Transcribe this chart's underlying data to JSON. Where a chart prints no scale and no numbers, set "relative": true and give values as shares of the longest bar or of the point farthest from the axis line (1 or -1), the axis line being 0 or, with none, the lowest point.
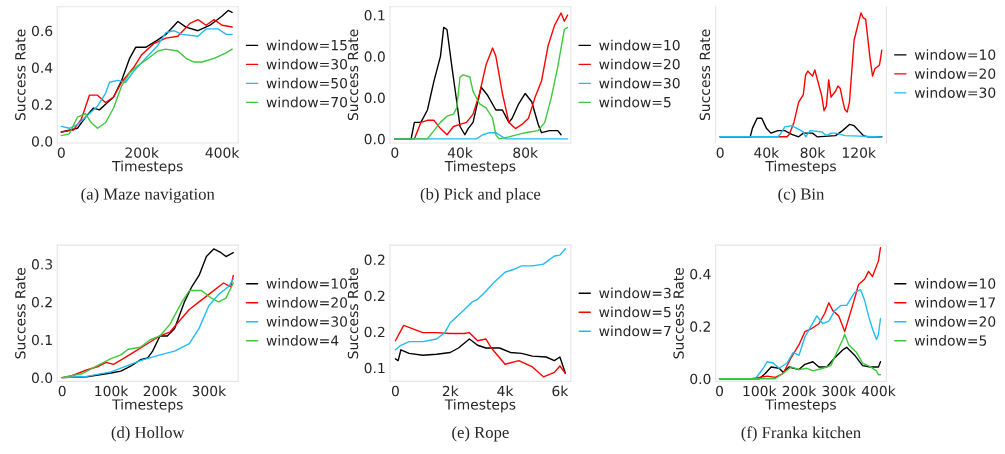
{
  "chart_data": [
    {
      "type": "line",
      "title": "(a) Maze navigation",
      "xlabel": "Timesteps",
      "ylabel": "Success Rate",
      "legend": "right",
      "xlim": [
        -10000,
        440000
      ],
      "xticks": [
        0,
        {
          "value": 200000,
          "label": "200k"
        },
        {
          "value": 400000,
          "label": "400k"
        }
      ],
      "ylim": [
        -0.01,
        0.73
      ],
      "yticks": [
        {
          "value": 0,
          "label": "0.0"
        },
        {
          "value": 0.2,
          "label": "0.2"
        },
        {
          "value": 0.4,
          "label": "0.4"
        },
        {
          "value": 0.6,
          "label": "0.6"
        }
      ],
      "series": [
        {
          "name": "window=15",
          "color": "#000000",
          "x": [
            0,
            20000,
            40000,
            60000,
            80000,
            95000,
            110000,
            130000,
            150000,
            170000,
            185000,
            210000,
            240000,
            260000,
            290000,
            310000,
            340000,
            370000,
            400000,
            415000,
            425000
          ],
          "values": [
            0.05,
            0.06,
            0.07,
            0.13,
            0.18,
            0.17,
            0.2,
            0.24,
            0.33,
            0.45,
            0.51,
            0.51,
            0.55,
            0.58,
            0.65,
            0.62,
            0.6,
            0.63,
            0.68,
            0.71,
            0.7
          ]
        },
        {
          "name": "window=30",
          "color": "#ff0000",
          "x": [
            0,
            30000,
            50000,
            70000,
            90000,
            110000,
            130000,
            150000,
            180000,
            200000,
            230000,
            260000,
            290000,
            320000,
            340000,
            360000,
            380000,
            400000,
            425000
          ],
          "values": [
            0.05,
            0.06,
            0.12,
            0.25,
            0.25,
            0.21,
            0.24,
            0.32,
            0.4,
            0.47,
            0.53,
            0.56,
            0.57,
            0.64,
            0.66,
            0.63,
            0.66,
            0.63,
            0.62
          ]
        },
        {
          "name": "window=50",
          "color": "#1ebcf5",
          "x": [
            0,
            20000,
            40000,
            60000,
            90000,
            110000,
            120000,
            140000,
            160000,
            180000,
            210000,
            240000,
            260000,
            280000,
            300000,
            340000,
            360000,
            390000,
            410000,
            425000
          ],
          "values": [
            0.08,
            0.07,
            0.09,
            0.13,
            0.19,
            0.26,
            0.32,
            0.33,
            0.32,
            0.38,
            0.45,
            0.52,
            0.59,
            0.6,
            0.58,
            0.57,
            0.61,
            0.61,
            0.58,
            0.58
          ]
        },
        {
          "name": "window=70",
          "color": "#3ec83e",
          "x": [
            0,
            20000,
            40000,
            60000,
            75000,
            90000,
            110000,
            130000,
            150000,
            170000,
            190000,
            210000,
            240000,
            260000,
            290000,
            310000,
            330000,
            350000,
            380000,
            410000,
            425000
          ],
          "values": [
            0.03,
            0.04,
            0.13,
            0.15,
            0.1,
            0.07,
            0.1,
            0.18,
            0.3,
            0.37,
            0.41,
            0.44,
            0.49,
            0.5,
            0.49,
            0.45,
            0.43,
            0.43,
            0.45,
            0.48,
            0.5
          ]
        }
      ]
    },
    {
      "type": "line",
      "title": "(b) Pick and place",
      "xlabel": "Timesteps",
      "ylabel": "Success Rate",
      "legend": "right",
      "xlim": [
        -3000,
        108000
      ],
      "xticks": [
        0,
        {
          "value": 40000,
          "label": "40k"
        },
        {
          "value": 80000,
          "label": "80k"
        }
      ],
      "ylim": [
        -0.002,
        0.064
      ],
      "yticks": [
        {
          "value": 0,
          "label": "0.0"
        },
        {
          "value": 0.02,
          "label": "0.0"
        },
        {
          "value": 0.04,
          "label": "0.0"
        },
        {
          "value": 0.06,
          "label": "0.1"
        }
      ],
      "series": [
        {
          "name": "window=10",
          "color": "#000000",
          "x": [
            0,
            8000,
            10000,
            12000,
            16000,
            20000,
            24000,
            28000,
            30000,
            32000,
            35000,
            38000,
            40000,
            43000,
            45000,
            48000,
            50000,
            53000,
            57000,
            62000,
            66000,
            70000,
            72000,
            76000,
            80000,
            84000,
            88000,
            90000,
            95000,
            100000,
            102000
          ],
          "values": [
            0,
            0,
            0.0,
            0.008,
            0.008,
            0.014,
            0.028,
            0.04,
            0.054,
            0.053,
            0.035,
            0.018,
            0.006,
            0.002,
            0.005,
            0.008,
            0.015,
            0.025,
            0.021,
            0.014,
            0.014,
            0.008,
            0.01,
            0.017,
            0.022,
            0.018,
            0.007,
            0.003,
            0.004,
            0.004,
            0.002
          ]
        },
        {
          "name": "window=20",
          "color": "#ff0000",
          "x": [
            0,
            12000,
            16000,
            20000,
            24000,
            28000,
            32000,
            36000,
            40000,
            44000,
            48000,
            52000,
            56000,
            60000,
            62000,
            66000,
            70000,
            74000,
            78000,
            82000,
            86000,
            90000,
            94000,
            98000,
            102000,
            104000,
            106000
          ],
          "values": [
            0,
            0,
            0.008,
            0.009,
            0.009,
            0.005,
            0.002,
            0.006,
            0.007,
            0.008,
            0.012,
            0.022,
            0.036,
            0.044,
            0.04,
            0.022,
            0.008,
            0.005,
            0.007,
            0.01,
            0.02,
            0.028,
            0.045,
            0.055,
            0.061,
            0.057,
            0.06
          ]
        },
        {
          "name": "window=30",
          "color": "#1ebcf5",
          "x": [
            0,
            50000,
            54000,
            58000,
            62000,
            66000,
            68000,
            106000
          ],
          "values": [
            0,
            0,
            0.002,
            0.003,
            0.003,
            0.001,
            0,
            0
          ]
        },
        {
          "name": "window=5",
          "color": "#3ec83e",
          "x": [
            0,
            20000,
            24000,
            28000,
            32000,
            36000,
            38000,
            40000,
            42000,
            46000,
            48000,
            52000,
            56000,
            60000,
            62000,
            64000,
            70000,
            80000,
            88000,
            92000,
            96000,
            100000,
            104000,
            106000
          ],
          "values": [
            0,
            0,
            0.004,
            0.008,
            0.011,
            0.012,
            0.015,
            0.03,
            0.031,
            0.03,
            0.023,
            0.017,
            0.015,
            0.01,
            0.002,
            0,
            0.001,
            0.003,
            0.004,
            0.008,
            0.02,
            0.035,
            0.053,
            0.054
          ]
        }
      ]
    },
    {
      "type": "line",
      "title": "(c) Bin",
      "xlabel": "Timesteps",
      "ylabel": "Success Rate",
      "legend": "right",
      "relative": true,
      "tick_labels": "x",
      "xlim": [
        -4000,
        144000
      ],
      "xticks": [
        0,
        {
          "value": 40000,
          "label": "40k"
        },
        {
          "value": 80000,
          "label": "80k"
        },
        {
          "value": 120000,
          "label": "120k"
        }
      ],
      "series": [
        {
          "name": "window=10",
          "color": "#000000",
          "x": [
            0,
            26000,
            28000,
            32000,
            36000,
            40000,
            44000,
            50000,
            56000,
            62000,
            68000,
            72000,
            80000,
            84000,
            100000,
            106000,
            112000,
            116000,
            120000,
            124000,
            128000,
            140000
          ],
          "values": [
            0,
            0,
            0.07,
            0.15,
            0.15,
            0.07,
            0.03,
            0.05,
            0.05,
            0.02,
            0,
            0.03,
            0.03,
            0,
            0.01,
            0.05,
            0.1,
            0.09,
            0.05,
            0.01,
            0,
            0
          ]
        },
        {
          "name": "window=20",
          "color": "#ff0000",
          "x": [
            0,
            58000,
            60000,
            64000,
            68000,
            72000,
            74000,
            76000,
            80000,
            82000,
            84000,
            88000,
            90000,
            92000,
            94000,
            96000,
            100000,
            102000,
            104000,
            106000,
            108000,
            110000,
            112000,
            116000,
            120000,
            122000,
            124000,
            126000,
            130000,
            132000,
            134000,
            138000,
            140000
          ],
          "values": [
            0,
            0,
            0.02,
            0.12,
            0.28,
            0.34,
            0.5,
            0.53,
            0.49,
            0.54,
            0.47,
            0.33,
            0.21,
            0.25,
            0.46,
            0.32,
            0.37,
            0.41,
            0.39,
            0.3,
            0.22,
            0.2,
            0.28,
            0.78,
            0.93,
            1.0,
            0.96,
            0.95,
            0.62,
            0.49,
            0.55,
            0.58,
            0.7
          ]
        },
        {
          "name": "window=30",
          "color": "#1ebcf5",
          "x": [
            0,
            50000,
            52000,
            56000,
            62000,
            72000,
            74000,
            78000,
            88000,
            92000,
            96000,
            100000,
            108000,
            140000
          ],
          "values": [
            0,
            0,
            0.02,
            0.08,
            0.09,
            0.04,
            0,
            0.05,
            0.04,
            0.01,
            0.03,
            0.03,
            0.01,
            0
          ]
        }
      ]
    },
    {
      "type": "line",
      "title": "(d) Hollow",
      "xlabel": "Timesteps",
      "ylabel": "Success Rate",
      "legend": "right",
      "xlim": [
        -10000,
        360000
      ],
      "xticks": [
        0,
        {
          "value": 100000,
          "label": "100k"
        },
        {
          "value": 200000,
          "label": "200k"
        },
        {
          "value": 300000,
          "label": "300k"
        }
      ],
      "ylim": [
        -0.01,
        0.35
      ],
      "yticks": [
        {
          "value": 0,
          "label": "0.0"
        },
        {
          "value": 0.1,
          "label": "0.1"
        },
        {
          "value": 0.2,
          "label": "0.2"
        },
        {
          "value": 0.3,
          "label": "0.3"
        }
      ],
      "series": [
        {
          "name": "window=10",
          "color": "#000000",
          "x": [
            0,
            50000,
            80000,
            100000,
            120000,
            140000,
            160000,
            175000,
            185000,
            200000,
            215000,
            230000,
            250000,
            265000,
            280000,
            295000,
            310000,
            325000,
            335000,
            350000
          ],
          "values": [
            0,
            0.002,
            0.008,
            0.012,
            0.017,
            0.03,
            0.047,
            0.052,
            0.07,
            0.11,
            0.11,
            0.13,
            0.2,
            0.24,
            0.27,
            0.32,
            0.34,
            0.33,
            0.32,
            0.33
          ]
        },
        {
          "name": "window=20",
          "color": "#ff0000",
          "x": [
            0,
            20000,
            50000,
            75000,
            90000,
            105000,
            125000,
            150000,
            175000,
            200000,
            220000,
            240000,
            260000,
            280000,
            300000,
            320000,
            330000,
            345000,
            350000
          ],
          "values": [
            0,
            0.005,
            0.02,
            0.03,
            0.04,
            0.035,
            0.05,
            0.07,
            0.09,
            0.11,
            0.12,
            0.15,
            0.18,
            0.2,
            0.22,
            0.24,
            0.25,
            0.24,
            0.27
          ]
        },
        {
          "name": "window=30",
          "color": "#1ebcf5",
          "x": [
            0,
            50000,
            100000,
            140000,
            160000,
            200000,
            230000,
            260000,
            280000,
            300000,
            320000,
            340000,
            350000
          ],
          "values": [
            0,
            0.003,
            0.015,
            0.035,
            0.045,
            0.06,
            0.07,
            0.09,
            0.13,
            0.19,
            0.22,
            0.24,
            0.26
          ]
        },
        {
          "name": "window=4",
          "color": "#3ec83e",
          "x": [
            0,
            40000,
            70000,
            100000,
            120000,
            135000,
            160000,
            180000,
            200000,
            220000,
            245000,
            260000,
            285000,
            305000,
            320000,
            335000,
            350000
          ],
          "values": [
            0,
            0.01,
            0.03,
            0.05,
            0.06,
            0.075,
            0.08,
            0.1,
            0.11,
            0.14,
            0.2,
            0.23,
            0.23,
            0.21,
            0.2,
            0.21,
            0.25
          ]
        }
      ]
    },
    {
      "type": "line",
      "title": "(e) Rope",
      "xlabel": "Timesteps",
      "ylabel": "Success Rate",
      "legend": "right",
      "xlim": [
        -200,
        6400
      ],
      "xticks": [
        0,
        {
          "value": 2000,
          "label": "2k"
        },
        {
          "value": 4000,
          "label": "4k"
        },
        {
          "value": 6000,
          "label": "6k"
        }
      ],
      "ylim": [
        0.105,
        0.256
      ],
      "yticks": [
        {
          "value": 0.12,
          "label": "0.1"
        },
        {
          "value": 0.16,
          "label": "0.2"
        },
        {
          "value": 0.2,
          "label": "0.2"
        },
        {
          "value": 0.24,
          "label": "0.2"
        }
      ],
      "series": [
        {
          "name": "window=3",
          "color": "#000000",
          "x": [
            0,
            100,
            200,
            500,
            1000,
            1500,
            2000,
            2300,
            2700,
            3000,
            3300,
            3800,
            4200,
            4600,
            5000,
            5500,
            5800,
            6000,
            6200
          ],
          "values": [
            0.13,
            0.128,
            0.14,
            0.136,
            0.134,
            0.135,
            0.137,
            0.142,
            0.152,
            0.145,
            0.142,
            0.142,
            0.137,
            0.136,
            0.133,
            0.132,
            0.128,
            0.132,
            0.114
          ]
        },
        {
          "name": "window=5",
          "color": "#ff0000",
          "x": [
            0,
            300,
            1000,
            1500,
            2000,
            2500,
            2700,
            3000,
            3300,
            3500,
            4000,
            4500,
            5000,
            5400,
            5800,
            6000,
            6200
          ],
          "values": [
            0.15,
            0.167,
            0.159,
            0.159,
            0.158,
            0.158,
            0.159,
            0.15,
            0.152,
            0.142,
            0.124,
            0.128,
            0.121,
            0.11,
            0.115,
            0.122,
            0.114
          ]
        },
        {
          "name": "window=7",
          "color": "#1ebcf5",
          "x": [
            0,
            200,
            500,
            1000,
            1500,
            1800,
            2000,
            2500,
            2800,
            3000,
            3300,
            3600,
            4000,
            4300,
            4600,
            5000,
            5400,
            5800,
            6000,
            6200
          ],
          "values": [
            0.14,
            0.145,
            0.149,
            0.149,
            0.152,
            0.159,
            0.17,
            0.184,
            0.193,
            0.196,
            0.205,
            0.215,
            0.226,
            0.229,
            0.233,
            0.233,
            0.235,
            0.244,
            0.245,
            0.252
          ]
        }
      ]
    },
    {
      "type": "line",
      "title": "(f) Franka kitchen",
      "xlabel": "Timesteps",
      "ylabel": "Success Rate",
      "legend": "right",
      "xlim": [
        -10000,
        420000
      ],
      "xticks": [
        0,
        {
          "value": 100000,
          "label": "100k"
        },
        {
          "value": 200000,
          "label": "200k"
        },
        {
          "value": 300000,
          "label": "300k"
        },
        {
          "value": 400000,
          "label": "400k"
        }
      ],
      "ylim": [
        -0.01,
        0.51
      ],
      "yticks": [
        {
          "value": 0,
          "label": "0.0"
        },
        {
          "value": 0.2,
          "label": "0.2"
        },
        {
          "value": 0.4,
          "label": "0.4"
        }
      ],
      "series": [
        {
          "name": "window=10",
          "color": "#000000",
          "x": [
            0,
            100000,
            115000,
            130000,
            150000,
            160000,
            175000,
            200000,
            215000,
            235000,
            250000,
            270000,
            290000,
            310000,
            320000,
            340000,
            360000,
            380000,
            400000,
            405000
          ],
          "values": [
            0,
            0,
            0.02,
            0.045,
            0.04,
            0.025,
            0.045,
            0.035,
            0.055,
            0.065,
            0.045,
            0.045,
            0.08,
            0.11,
            0.12,
            0.09,
            0.05,
            0.045,
            0.045,
            0.065
          ]
        },
        {
          "name": "window=17",
          "color": "#ff0000",
          "x": [
            0,
            80000,
            100000,
            120000,
            140000,
            160000,
            180000,
            200000,
            215000,
            230000,
            250000,
            265000,
            275000,
            285000,
            300000,
            310000,
            315000,
            325000,
            335000,
            350000,
            365000,
            375000,
            385000,
            400000,
            405000
          ],
          "values": [
            0,
            0,
            0.005,
            0.01,
            0.005,
            0.02,
            0.08,
            0.13,
            0.18,
            0.19,
            0.21,
            0.25,
            0.29,
            0.26,
            0.24,
            0.2,
            0.18,
            0.23,
            0.28,
            0.36,
            0.38,
            0.41,
            0.39,
            0.45,
            0.5
          ]
        },
        {
          "name": "window=20",
          "color": "#1ebcf5",
          "x": [
            0,
            90000,
            110000,
            120000,
            135000,
            150000,
            170000,
            185000,
            200000,
            215000,
            230000,
            245000,
            260000,
            275000,
            290000,
            305000,
            320000,
            340000,
            355000,
            365000,
            375000,
            385000,
            395000,
            400000,
            405000
          ],
          "values": [
            0,
            0,
            0.04,
            0.065,
            0.06,
            0.04,
            0.06,
            0.1,
            0.09,
            0.16,
            0.2,
            0.24,
            0.21,
            0.22,
            0.26,
            0.28,
            0.28,
            0.33,
            0.34,
            0.3,
            0.24,
            0.19,
            0.15,
            0.17,
            0.23
          ]
        },
        {
          "name": "window=5",
          "color": "#3ec83e",
          "x": [
            0,
            140000,
            160000,
            180000,
            200000,
            220000,
            235000,
            260000,
            280000,
            295000,
            310000,
            315000,
            325000,
            345000,
            360000,
            380000,
            395000,
            400000,
            405000
          ],
          "values": [
            0,
            0,
            0.02,
            0.045,
            0.035,
            0.04,
            0.03,
            0.04,
            0.05,
            0.1,
            0.15,
            0.17,
            0.13,
            0.1,
            0.06,
            0.045,
            0.03,
            0.015,
            0.015
          ]
        }
      ]
    }
  ]
}
